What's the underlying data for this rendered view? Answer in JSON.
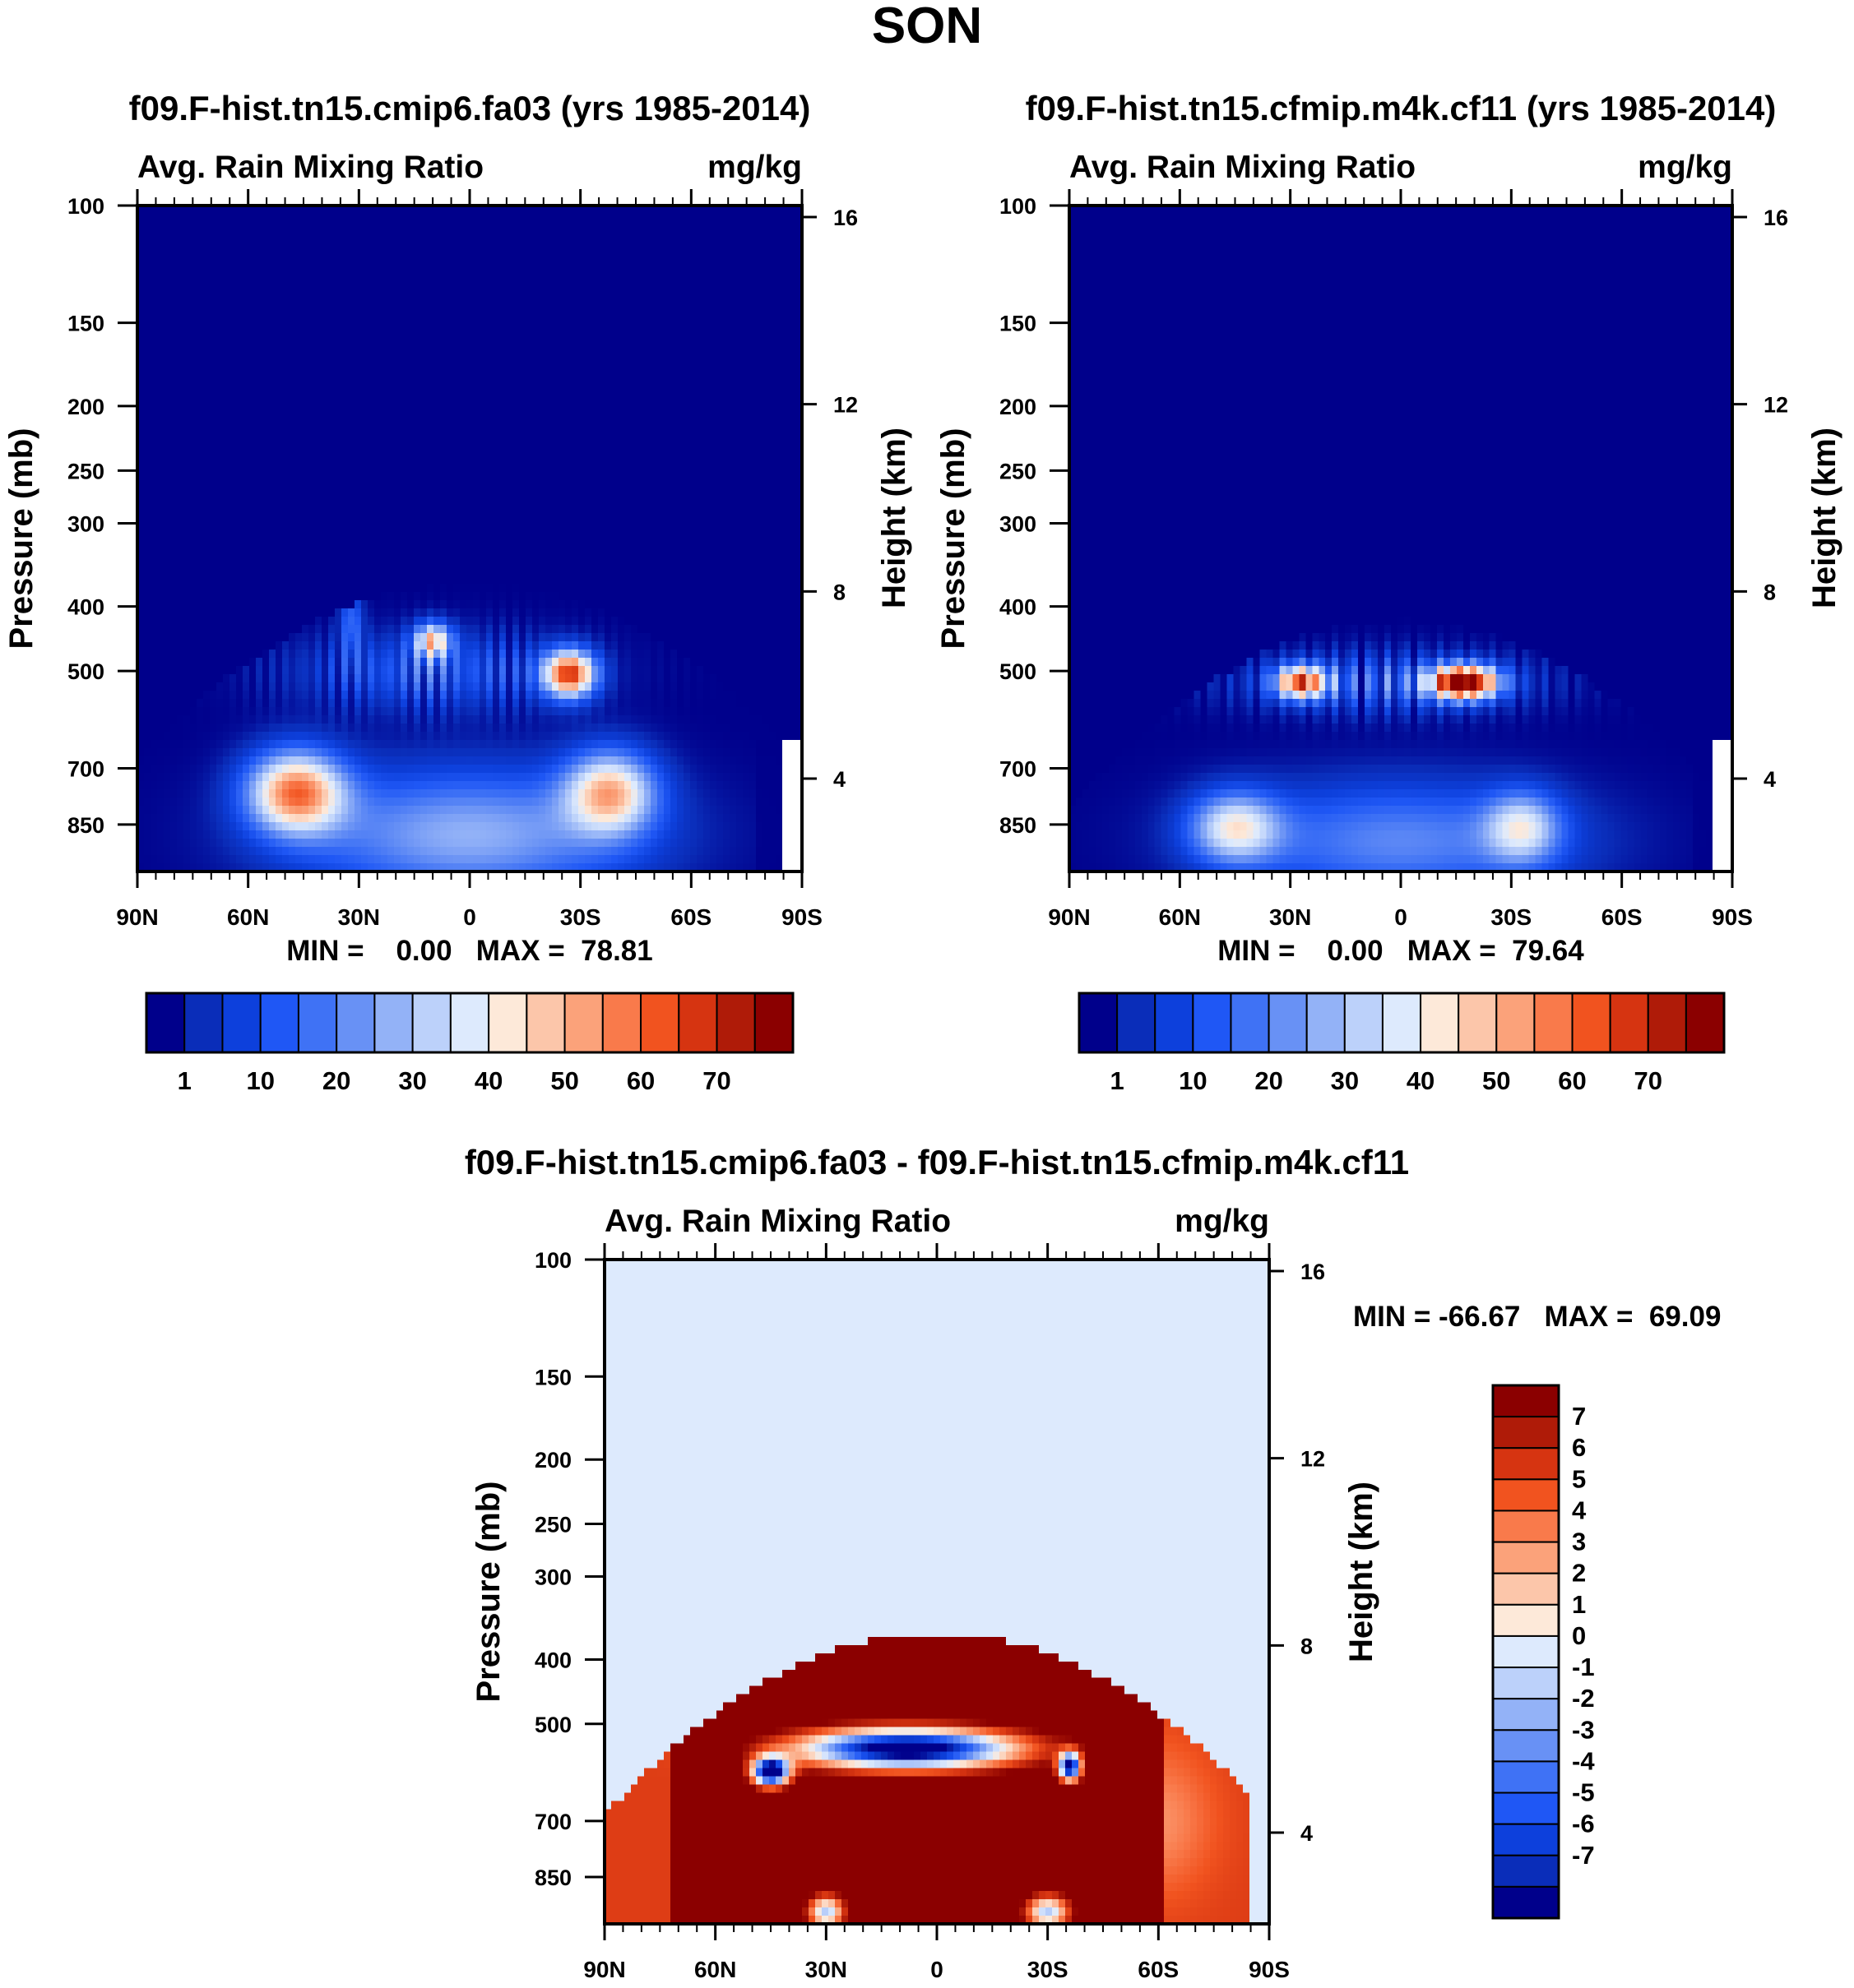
{
  "page_title": "SON",
  "chart_data": [
    {
      "type": "heatmap",
      "title": "f09.F-hist.tn15.cmip6.fa03 (yrs 1985-2014)",
      "variable_label": "Avg. Rain Mixing Ratio",
      "units_label": "mg/kg",
      "ylabel": "Pressure (mb)",
      "ylabel_right": "Height (km)",
      "x_tick_labels": [
        "90N",
        "60N",
        "30N",
        "0",
        "30S",
        "60S",
        "90S"
      ],
      "x_tick_values": [
        90,
        60,
        30,
        0,
        -30,
        -60,
        -90
      ],
      "xlim": [
        90,
        -90
      ],
      "y_tick_labels": [
        "100",
        "150",
        "200",
        "250",
        "300",
        "400",
        "500",
        "700",
        "850"
      ],
      "y_tick_values": [
        100,
        150,
        200,
        250,
        300,
        400,
        500,
        700,
        850
      ],
      "ylim": [
        100,
        1000
      ],
      "y_scale": "log",
      "height_tick_labels": [
        "16",
        "12",
        "8",
        "4"
      ],
      "height_tick_values": [
        16,
        12,
        8,
        4
      ],
      "min_max_text": "MIN =    0.00   MAX =  78.81",
      "min_value": 0.0,
      "max_value": 78.81,
      "colorbar": {
        "orientation": "horizontal",
        "levels": [
          1,
          5,
          10,
          15,
          20,
          25,
          30,
          35,
          40,
          45,
          50,
          55,
          60,
          65,
          70
        ],
        "tick_labels": [
          "1",
          "10",
          "20",
          "30",
          "40",
          "50",
          "60",
          "70"
        ],
        "colors": [
          "#00008b",
          "#0a2db9",
          "#0d40dc",
          "#1f57f5",
          "#3f72f5",
          "#6891f5",
          "#93b2f7",
          "#bcd1fa",
          "#ddeafd",
          "#fde9d9",
          "#fcc6aa",
          "#fba27a",
          "#f97a4b",
          "#f1531f",
          "#d63411",
          "#af1b08",
          "#8b0000"
        ]
      },
      "features": [
        {
          "lat": 47,
          "p": 760,
          "value": 58
        },
        {
          "lat": -38,
          "p": 760,
          "value": 47
        },
        {
          "lat": -27,
          "p": 505,
          "value": 72
        },
        {
          "lat": 10,
          "p": 450,
          "value": 60
        }
      ]
    },
    {
      "type": "heatmap",
      "title": "f09.F-hist.tn15.cfmip.m4k.cf11 (yrs 1985-2014)",
      "variable_label": "Avg. Rain Mixing Ratio",
      "units_label": "mg/kg",
      "ylabel": "Pressure (mb)",
      "ylabel_right": "Height (km)",
      "x_tick_labels": [
        "90N",
        "60N",
        "30N",
        "0",
        "30S",
        "60S",
        "90S"
      ],
      "x_tick_values": [
        90,
        60,
        30,
        0,
        -30,
        -60,
        -90
      ],
      "xlim": [
        90,
        -90
      ],
      "y_tick_labels": [
        "100",
        "150",
        "200",
        "250",
        "300",
        "400",
        "500",
        "700",
        "850"
      ],
      "y_tick_values": [
        100,
        150,
        200,
        250,
        300,
        400,
        500,
        700,
        850
      ],
      "ylim": [
        100,
        1000
      ],
      "y_scale": "log",
      "height_tick_labels": [
        "16",
        "12",
        "8",
        "4"
      ],
      "height_tick_values": [
        16,
        12,
        8,
        4
      ],
      "min_max_text": "MIN =    0.00   MAX =  79.64",
      "min_value": 0.0,
      "max_value": 79.64,
      "colorbar": {
        "orientation": "horizontal",
        "levels": [
          1,
          5,
          10,
          15,
          20,
          25,
          30,
          35,
          40,
          45,
          50,
          55,
          60,
          65,
          70
        ],
        "tick_labels": [
          "1",
          "10",
          "20",
          "30",
          "40",
          "50",
          "60",
          "70"
        ],
        "colors": [
          "#00008b",
          "#0a2db9",
          "#0d40dc",
          "#1f57f5",
          "#3f72f5",
          "#6891f5",
          "#93b2f7",
          "#bcd1fa",
          "#ddeafd",
          "#fde9d9",
          "#fcc6aa",
          "#fba27a",
          "#f97a4b",
          "#f1531f",
          "#d63411",
          "#af1b08",
          "#8b0000"
        ]
      },
      "features": [
        {
          "lat": -17,
          "p": 520,
          "value": 79
        },
        {
          "lat": 28,
          "p": 520,
          "value": 62
        },
        {
          "lat": 45,
          "p": 850,
          "value": 40
        },
        {
          "lat": -33,
          "p": 850,
          "value": 36
        }
      ]
    },
    {
      "type": "heatmap",
      "title": "f09.F-hist.tn15.cmip6.fa03 - f09.F-hist.tn15.cfmip.m4k.cf11",
      "variable_label": "Avg. Rain Mixing Ratio",
      "units_label": "mg/kg",
      "ylabel": "Pressure (mb)",
      "ylabel_right": "Height (km)",
      "x_tick_labels": [
        "90N",
        "60N",
        "30N",
        "0",
        "30S",
        "60S",
        "90S"
      ],
      "x_tick_values": [
        90,
        60,
        30,
        0,
        -30,
        -60,
        -90
      ],
      "xlim": [
        90,
        -90
      ],
      "y_tick_labels": [
        "100",
        "150",
        "200",
        "250",
        "300",
        "400",
        "500",
        "700",
        "850"
      ],
      "y_tick_values": [
        100,
        150,
        200,
        250,
        300,
        400,
        500,
        700,
        850
      ],
      "ylim": [
        100,
        1000
      ],
      "y_scale": "log",
      "height_tick_labels": [
        "16",
        "12",
        "8",
        "4"
      ],
      "height_tick_values": [
        16,
        12,
        8,
        4
      ],
      "min_max_text": "MIN = -66.67   MAX =  69.09",
      "min_value": -66.67,
      "max_value": 69.09,
      "colorbar": {
        "orientation": "vertical",
        "levels": [
          -7,
          -6,
          -5,
          -4,
          -3,
          -2,
          -1,
          0,
          1,
          2,
          3,
          4,
          5,
          6,
          7
        ],
        "tick_labels": [
          "7",
          "6",
          "5",
          "4",
          "3",
          "2",
          "1",
          "0",
          "-1",
          "-2",
          "-3",
          "-4",
          "-5",
          "-6",
          "-7"
        ],
        "colors": [
          "#00008b",
          "#0a2db9",
          "#0d40dc",
          "#1f57f5",
          "#3f72f5",
          "#6891f5",
          "#93b2f7",
          "#bcd1fa",
          "#ddeafd",
          "#fde9d9",
          "#fcc6aa",
          "#fba27a",
          "#f97a4b",
          "#f1531f",
          "#d63411",
          "#af1b08",
          "#8b0000"
        ]
      },
      "features": [
        {
          "lat": 8,
          "p": 520,
          "value": -60
        },
        {
          "lat": 0,
          "p": 700,
          "value": 69
        },
        {
          "lat": 30,
          "p": 950,
          "value": -5
        },
        {
          "lat": -30,
          "p": 950,
          "value": -6
        }
      ]
    }
  ]
}
